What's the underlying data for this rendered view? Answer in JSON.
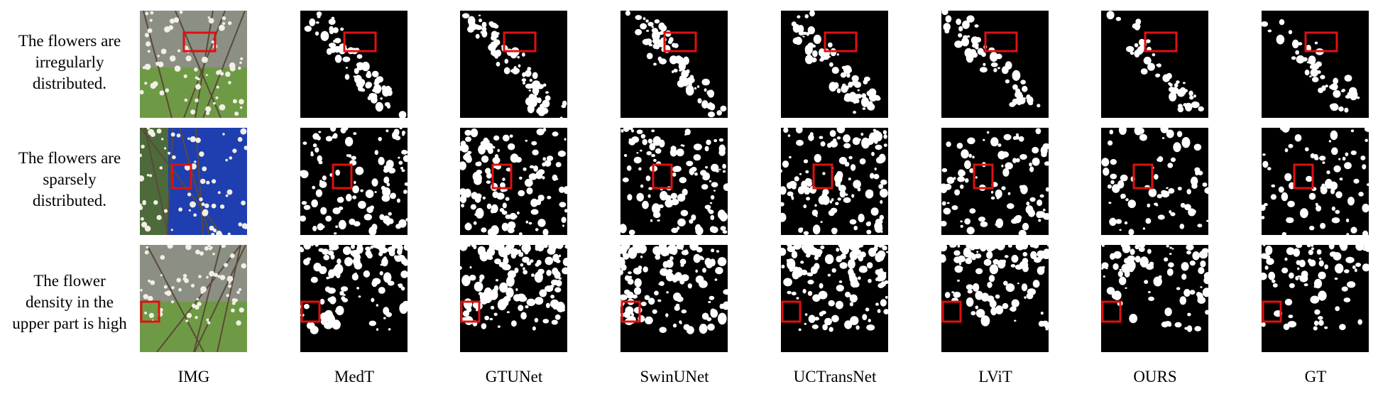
{
  "row_labels": [
    [
      "The flowers are",
      "irregularly",
      "distributed."
    ],
    [
      "The flowers are",
      "sparsely",
      "distributed."
    ],
    [
      "The flower",
      "density in the",
      "upper part is high"
    ]
  ],
  "column_labels": [
    "IMG",
    "MedT",
    "GTUNet",
    "SwinUNet",
    "UCTransNet",
    "LViT",
    "OURS",
    "GT"
  ],
  "colors": {
    "mask_background": "#000000",
    "mask_foreground": "#ffffff",
    "highlight_box": "#e01010",
    "grass": "#6f9a45",
    "sky_blue": "#1f3fb0"
  }
}
